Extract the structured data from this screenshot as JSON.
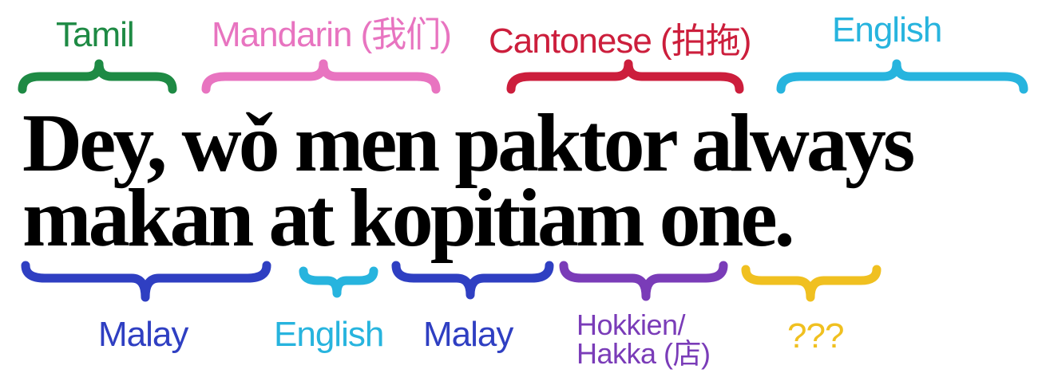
{
  "sentence": {
    "line1": "Dey, wǒ men paktor always",
    "line2": "makan at kopitiam one."
  },
  "colors": {
    "tamil": "#1e8a44",
    "mandarin": "#e874c0",
    "cantonese": "#cc1e3c",
    "english": "#27b4de",
    "malay": "#2f3fc2",
    "hokkien": "#7a3cb8",
    "unknown": "#f0c020"
  },
  "top_labels": [
    {
      "key": "tamil",
      "text": "Tamil"
    },
    {
      "key": "mandarin",
      "text": "Mandarin (我们)"
    },
    {
      "key": "cantonese",
      "text": "Cantonese (拍拖)"
    },
    {
      "key": "english",
      "text": "English"
    }
  ],
  "bottom_labels": [
    {
      "key": "malay",
      "text": "Malay"
    },
    {
      "key": "english",
      "text": "English"
    },
    {
      "key": "malay",
      "text": "Malay"
    },
    {
      "key": "hokkien",
      "line1": "Hokkien/",
      "line2": "Hakka (店)"
    },
    {
      "key": "unknown",
      "text": "???"
    }
  ]
}
